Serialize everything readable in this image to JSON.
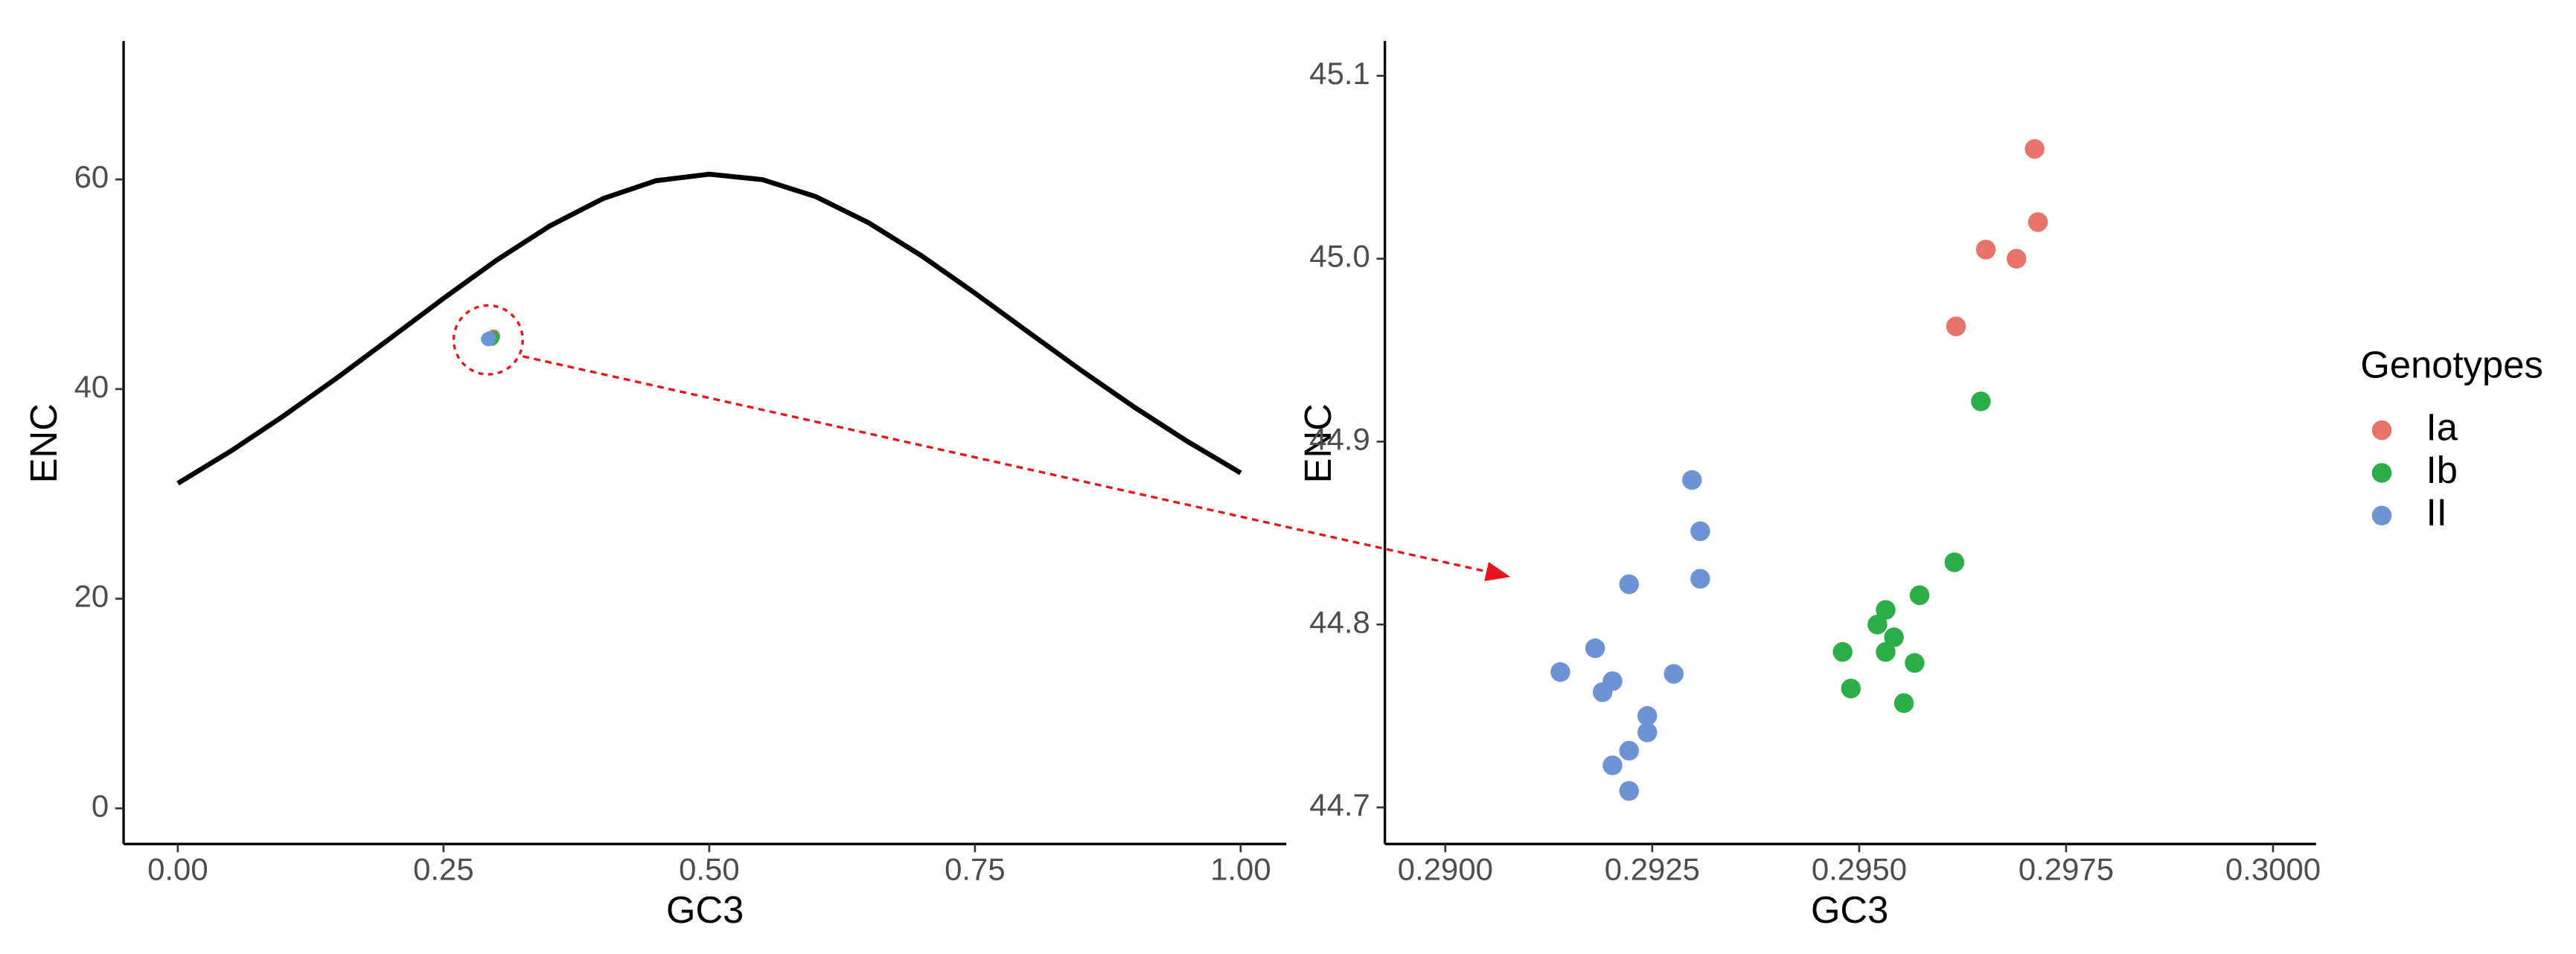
{
  "chart_data": [
    {
      "type": "line",
      "xlabel": "GC3",
      "ylabel": "ENC",
      "color": "#000000",
      "x": [
        0,
        0.05,
        0.1,
        0.15,
        0.2,
        0.25,
        0.3,
        0.35,
        0.4,
        0.45,
        0.5,
        0.55,
        0.6,
        0.65,
        0.7,
        0.75,
        0.8,
        0.85,
        0.9,
        0.95,
        1.0
      ],
      "values": [
        31,
        34.09,
        37.47,
        41.08,
        44.85,
        48.65,
        52.3,
        55.56,
        58.17,
        59.88,
        60.5,
        59.98,
        58.37,
        55.86,
        52.7,
        49.15,
        45.45,
        41.78,
        38.27,
        35.0,
        32
      ],
      "xlim": [
        -0.051,
        1.043
      ],
      "ylim": [
        -3.4,
        73.2
      ],
      "xticks": [
        {
          "value": 0,
          "label": "0.00"
        },
        {
          "value": 0.25,
          "label": "0.25"
        },
        {
          "value": 0.5,
          "label": "0.50"
        },
        {
          "value": 0.75,
          "label": "0.75"
        },
        {
          "value": 1,
          "label": "1.00"
        }
      ],
      "yticks": [
        0,
        20,
        40,
        60
      ]
    },
    {
      "type": "scatter",
      "xlabel": "GC3",
      "ylabel": "ENC",
      "legend_title": "Genotypes",
      "xlim": [
        0.28927,
        0.30052
      ],
      "ylim": [
        44.68,
        45.119
      ],
      "xticks": [
        {
          "value": 0.29,
          "label": "0.2900"
        },
        {
          "value": 0.2925,
          "label": "0.2925"
        },
        {
          "value": 0.295,
          "label": "0.2950"
        },
        {
          "value": 0.2975,
          "label": "0.2975"
        },
        {
          "value": 0.3,
          "label": "0.3000"
        }
      ],
      "yticks": [
        44.7,
        44.8,
        44.9,
        {
          "value": 45.0,
          "label": "45.0"
        },
        45.1
      ],
      "series": [
        {
          "name": "Ia",
          "color": "#E8736A",
          "x": [
            0.29712,
            0.29716,
            0.29653,
            0.2969,
            0.29617
          ],
          "values": [
            45.06,
            45.02,
            45.005,
            45.0,
            44.963
          ]
        },
        {
          "name": "Ib",
          "color": "#2BAE48",
          "x": [
            0.29647,
            0.29615,
            0.29573,
            0.29532,
            0.29522,
            0.29542,
            0.2948,
            0.29532,
            0.29567,
            0.2949,
            0.29554
          ],
          "values": [
            44.922,
            44.834,
            44.816,
            44.808,
            44.8,
            44.793,
            44.785,
            44.785,
            44.779,
            44.765,
            44.757
          ]
        },
        {
          "name": "II",
          "color": "#6C93D3",
          "x": [
            0.29298,
            0.29308,
            0.29308,
            0.29222,
            0.29181,
            0.29139,
            0.29276,
            0.29202,
            0.2919,
            0.29244,
            0.29244,
            0.29222,
            0.29202,
            0.29222
          ],
          "values": [
            44.879,
            44.851,
            44.825,
            44.822,
            44.787,
            44.774,
            44.773,
            44.769,
            44.763,
            44.75,
            44.741,
            44.731,
            44.723,
            44.709
          ]
        }
      ]
    }
  ]
}
